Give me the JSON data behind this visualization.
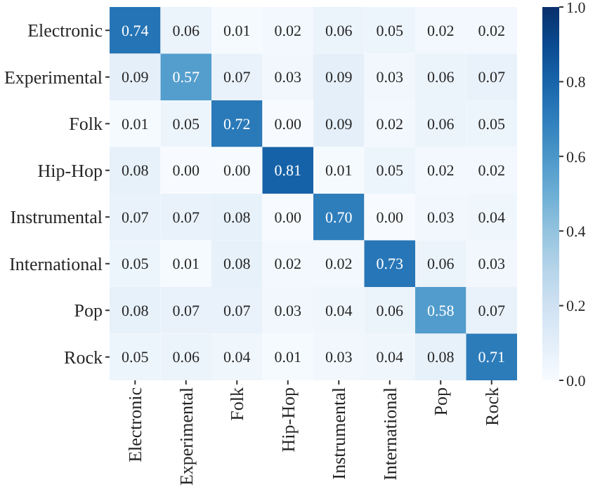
{
  "chart_data": {
    "type": "heatmap",
    "categories": [
      "Electronic",
      "Experimental",
      "Folk",
      "Hip-Hop",
      "Instrumental",
      "International",
      "Pop",
      "Rock"
    ],
    "y_categories": [
      "Electronic",
      "Experimental",
      "Folk",
      "Hip-Hop",
      "Instrumental",
      "International",
      "Pop",
      "Rock"
    ],
    "cells": [
      [
        0.74,
        0.06,
        0.01,
        0.02,
        0.06,
        0.05,
        0.02,
        0.02
      ],
      [
        0.09,
        0.57,
        0.07,
        0.03,
        0.09,
        0.03,
        0.06,
        0.07
      ],
      [
        0.01,
        0.05,
        0.72,
        0.0,
        0.09,
        0.02,
        0.06,
        0.05
      ],
      [
        0.08,
        0.0,
        0.0,
        0.81,
        0.01,
        0.05,
        0.02,
        0.02
      ],
      [
        0.07,
        0.07,
        0.08,
        0.0,
        0.7,
        0.0,
        0.03,
        0.04
      ],
      [
        0.05,
        0.01,
        0.08,
        0.02,
        0.02,
        0.73,
        0.06,
        0.03
      ],
      [
        0.08,
        0.07,
        0.07,
        0.03,
        0.04,
        0.06,
        0.58,
        0.07
      ],
      [
        0.05,
        0.06,
        0.04,
        0.01,
        0.03,
        0.04,
        0.08,
        0.71
      ]
    ],
    "cell_labels": [
      [
        "0.74",
        "0.06",
        "0.01",
        "0.02",
        "0.06",
        "0.05",
        "0.02",
        "0.02"
      ],
      [
        "0.09",
        "0.57",
        "0.07",
        "0.03",
        "0.09",
        "0.03",
        "0.06",
        "0.07"
      ],
      [
        "0.01",
        "0.05",
        "0.72",
        "0.00",
        "0.09",
        "0.02",
        "0.06",
        "0.05"
      ],
      [
        "0.08",
        "0.00",
        "0.00",
        "0.81",
        "0.01",
        "0.05",
        "0.02",
        "0.02"
      ],
      [
        "0.07",
        "0.07",
        "0.08",
        "0.00",
        "0.70",
        "0.00",
        "0.03",
        "0.04"
      ],
      [
        "0.05",
        "0.01",
        "0.08",
        "0.02",
        "0.02",
        "0.73",
        "0.06",
        "0.03"
      ],
      [
        "0.08",
        "0.07",
        "0.07",
        "0.03",
        "0.04",
        "0.06",
        "0.58",
        "0.07"
      ],
      [
        "0.05",
        "0.06",
        "0.04",
        "0.01",
        "0.03",
        "0.04",
        "0.08",
        "0.71"
      ]
    ],
    "clim": [
      0,
      1
    ],
    "cticks": [
      {
        "value": 0,
        "label": "0.0"
      },
      {
        "value": 0.2,
        "label": "0.2"
      },
      {
        "value": 0.4,
        "label": "0.4"
      },
      {
        "value": 0.6,
        "label": "0.6"
      },
      {
        "value": 0.8,
        "label": "0.8"
      },
      {
        "value": 1,
        "label": "1.0"
      }
    ]
  }
}
